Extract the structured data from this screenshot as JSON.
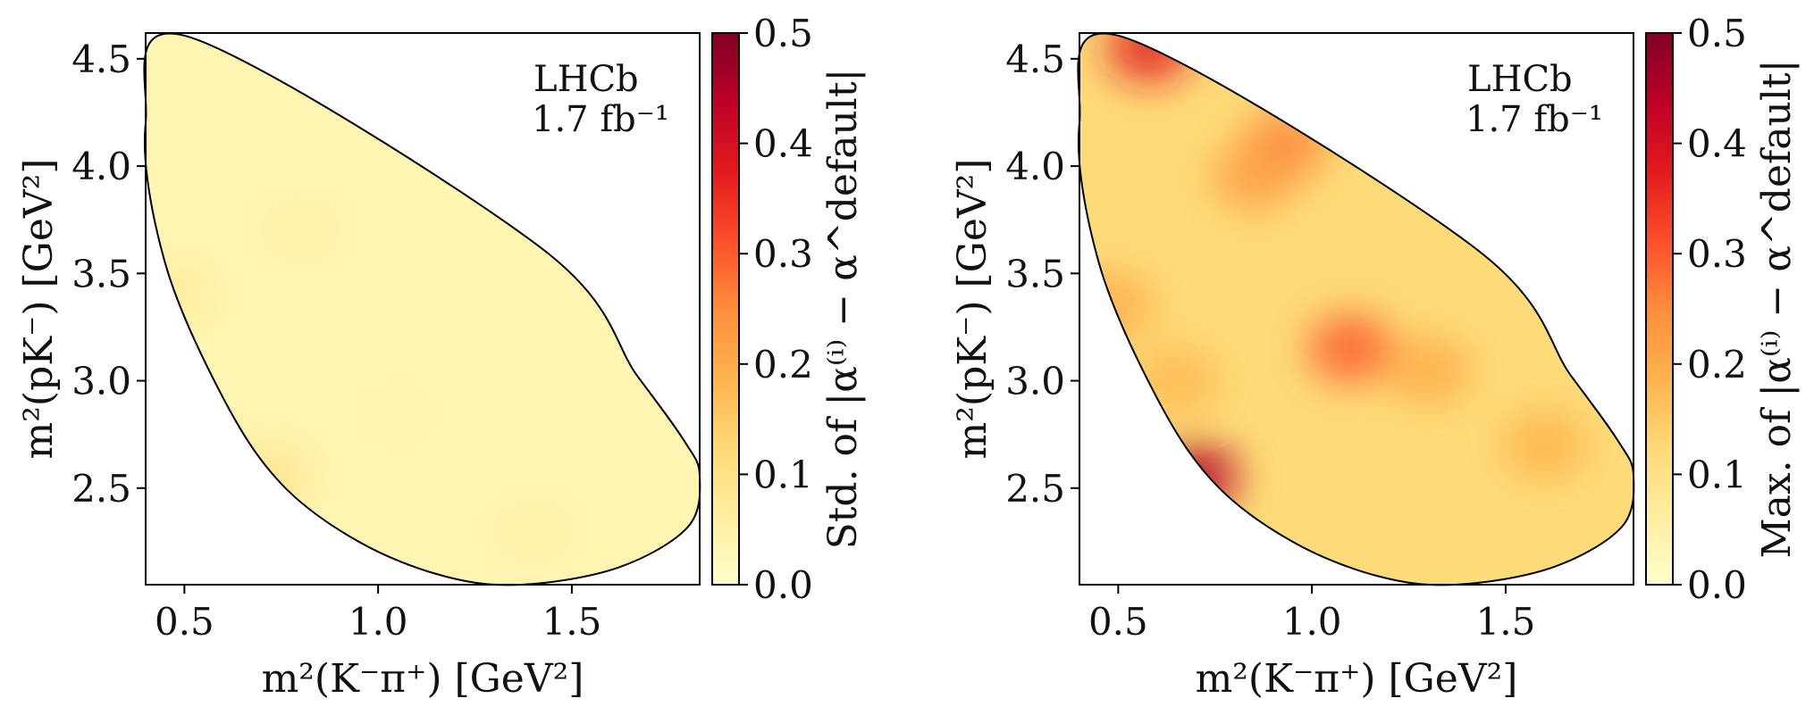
{
  "chart_data": [
    {
      "type": "heatmap",
      "xlabel": "m²(K⁻π⁺) [GeV²]",
      "ylabel": "m²(pK⁻) [GeV²]",
      "xlim": [
        0.4,
        1.83
      ],
      "ylim": [
        2.05,
        4.62
      ],
      "x_ticks": [
        0.5,
        1.0,
        1.5
      ],
      "x_tick_labels": [
        "0.5",
        "1.0",
        "1.5"
      ],
      "y_ticks": [
        2.5,
        3.0,
        3.5,
        4.0,
        4.5
      ],
      "y_tick_labels": [
        "2.5",
        "3.0",
        "3.5",
        "4.0",
        "4.5"
      ],
      "annotation": [
        "LHCb",
        "1.7 fb⁻¹"
      ],
      "colorbar": {
        "label": "Std. of |α⁽ⁱ⁾ − α^default|",
        "range": [
          0.0,
          0.5
        ],
        "ticks": [
          0.0,
          0.1,
          0.2,
          0.3,
          0.4,
          0.5
        ],
        "tick_labels": [
          "0.0",
          "0.1",
          "0.2",
          "0.3",
          "0.4",
          "0.5"
        ],
        "colormap": "YlOrRd"
      },
      "boundary": {
        "x": [
          0.515,
          0.4,
          0.45,
          0.6,
          0.75,
          0.95,
          1.17,
          1.37,
          1.62,
          1.8,
          1.83,
          1.79,
          1.67,
          1.42,
          0.515
        ],
        "y": [
          4.6,
          4.2,
          3.55,
          2.92,
          2.52,
          2.25,
          2.09,
          2.05,
          2.13,
          2.32,
          2.56,
          2.72,
          3.02,
          3.62,
          4.6
        ]
      },
      "features": [
        {
          "x": 0.47,
          "y": 3.4,
          "value": 0.07
        },
        {
          "x": 0.72,
          "y": 2.55,
          "value": 0.09
        },
        {
          "x": 0.8,
          "y": 3.7,
          "value": 0.05
        },
        {
          "x": 1.05,
          "y": 2.85,
          "value": 0.04
        },
        {
          "x": 1.4,
          "y": 2.3,
          "value": 0.05
        }
      ],
      "base_value": 0.035
    },
    {
      "type": "heatmap",
      "xlabel": "m²(K⁻π⁺) [GeV²]",
      "ylabel": "m²(pK⁻) [GeV²]",
      "xlim": [
        0.4,
        1.83
      ],
      "ylim": [
        2.05,
        4.62
      ],
      "x_ticks": [
        0.5,
        1.0,
        1.5
      ],
      "x_tick_labels": [
        "0.5",
        "1.0",
        "1.5"
      ],
      "y_ticks": [
        2.5,
        3.0,
        3.5,
        4.0,
        4.5
      ],
      "y_tick_labels": [
        "2.5",
        "3.0",
        "3.5",
        "4.0",
        "4.5"
      ],
      "annotation": [
        "LHCb",
        "1.7 fb⁻¹"
      ],
      "colorbar": {
        "label": "Max. of |α⁽ⁱ⁾ − α^default|",
        "range": [
          0.0,
          0.5
        ],
        "ticks": [
          0.0,
          0.1,
          0.2,
          0.3,
          0.4,
          0.5
        ],
        "tick_labels": [
          "0.0",
          "0.1",
          "0.2",
          "0.3",
          "0.4",
          "0.5"
        ],
        "colormap": "YlOrRd"
      },
      "boundary": {
        "x": [
          0.515,
          0.4,
          0.45,
          0.6,
          0.75,
          0.95,
          1.17,
          1.37,
          1.62,
          1.8,
          1.83,
          1.79,
          1.67,
          1.42,
          0.515
        ],
        "y": [
          4.6,
          4.2,
          3.55,
          2.92,
          2.52,
          2.25,
          2.09,
          2.05,
          2.13,
          2.32,
          2.56,
          2.72,
          3.02,
          3.62,
          4.6
        ]
      },
      "features": [
        {
          "x": 0.58,
          "y": 4.55,
          "value": 0.38
        },
        {
          "x": 0.7,
          "y": 2.55,
          "value": 0.45
        },
        {
          "x": 1.1,
          "y": 3.15,
          "value": 0.3
        },
        {
          "x": 0.93,
          "y": 4.1,
          "value": 0.26
        },
        {
          "x": 0.85,
          "y": 3.95,
          "value": 0.22
        },
        {
          "x": 0.48,
          "y": 3.35,
          "value": 0.2
        },
        {
          "x": 1.3,
          "y": 3.05,
          "value": 0.2
        },
        {
          "x": 1.6,
          "y": 2.7,
          "value": 0.19
        },
        {
          "x": 0.65,
          "y": 3.0,
          "value": 0.18
        }
      ],
      "base_value": 0.12
    }
  ]
}
